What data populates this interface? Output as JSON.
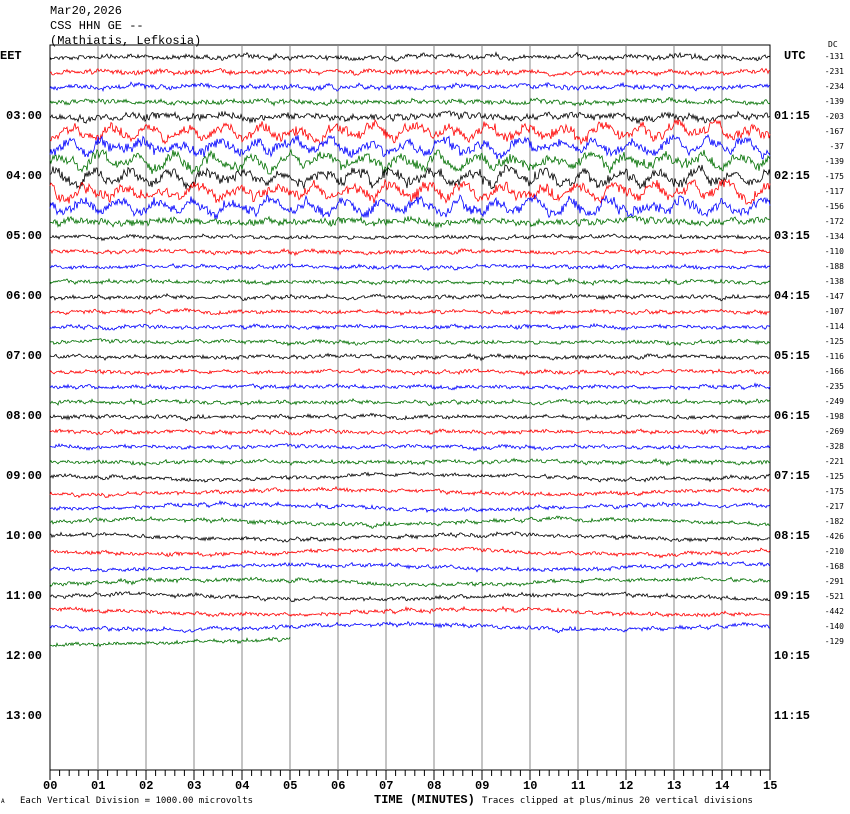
{
  "header": {
    "date": "Mar20,2026",
    "station": "CSS HHN GE --",
    "location": "(Mathiatis, Lefkosia)"
  },
  "left_timezone": "EET",
  "right_timezone": "UTC",
  "dc_label": "DC",
  "left_hours": [
    "03:00",
    "04:00",
    "05:00",
    "06:00",
    "07:00",
    "08:00",
    "09:00",
    "10:00",
    "11:00",
    "12:00",
    "13:00"
  ],
  "right_hours": [
    "01:15",
    "02:15",
    "03:15",
    "04:15",
    "05:15",
    "06:15",
    "07:15",
    "08:15",
    "09:15",
    "10:15",
    "11:15"
  ],
  "footer": {
    "scale_note": "Each Vertical Division = 1000.00 microvolts",
    "xlabel": "TIME (MINUTES)",
    "clip_note": "Traces clipped at plus/minus 20 vertical divisions",
    "corner_mark": "A"
  },
  "colors": [
    "#000000",
    "#ff0000",
    "#0000ff",
    "#007000"
  ],
  "chart_data": {
    "type": "line",
    "xlabel": "TIME (MINUTES)",
    "x_ticks": [
      "00",
      "01",
      "02",
      "03",
      "04",
      "05",
      "06",
      "07",
      "08",
      "09",
      "10",
      "11",
      "12",
      "13",
      "14",
      "15"
    ],
    "xlim": [
      0,
      15
    ],
    "rows_per_hour": 4,
    "last_row_end_minute": 5,
    "dc_offsets": [
      -131,
      -231,
      -234,
      -139,
      -203,
      -167,
      -37,
      -139,
      -175,
      -117,
      -156,
      -172,
      -134,
      -110,
      -188,
      -138,
      -147,
      -107,
      -114,
      -125,
      -116,
      -166,
      -235,
      -249,
      -198,
      -269,
      -328,
      -221,
      -125,
      -175,
      -217,
      -182,
      -426,
      -210,
      -168,
      -291,
      -521,
      -442,
      -140,
      -129
    ]
  }
}
